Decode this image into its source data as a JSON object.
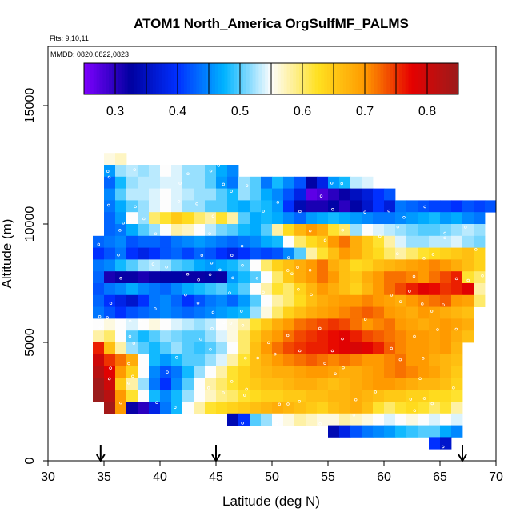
{
  "chart_data": {
    "type": "heatmap",
    "title": "ATOM1 North_America OrgSulfMF_PALMS",
    "annotations": [
      "Flts: 9,10,11",
      "MMDD: 0820,0822,0823"
    ],
    "xlabel": "Latitude (deg N)",
    "ylabel": "Altitude (m)",
    "xlim": [
      30,
      70
    ],
    "ylim": [
      0,
      17500
    ],
    "x_ticks": [
      "30",
      "35",
      "40",
      "45",
      "50",
      "55",
      "60",
      "65",
      "70"
    ],
    "y_ticks": [
      "0",
      "5000",
      "10000",
      "15000"
    ],
    "colorbar": {
      "vmin": 0.25,
      "vmax": 0.85,
      "ticks": [
        "0.3",
        "0.4",
        "0.5",
        "0.6",
        "0.7",
        "0.8"
      ],
      "colors": [
        "#7f00ff",
        "#0000a0",
        "#0030ff",
        "#00b4ff",
        "#fdfdfd",
        "#ffe020",
        "#ff9a00",
        "#e60000",
        "#9a1c1c"
      ]
    },
    "arrows_at_latitude": [
      34.7,
      45,
      67
    ],
    "bin": {
      "lat_step": 1,
      "alt_step": 500
    },
    "rows": [
      {
        "alt": 12750,
        "start": 35,
        "values": [
          0.56,
          0.57
        ]
      },
      {
        "alt": 12250,
        "start": 35,
        "values": [
          0.46,
          0.52,
          0.53,
          0.52,
          0.53,
          0.55,
          0.54,
          0.52,
          0.52,
          0.5,
          0.47,
          0.45
        ]
      },
      {
        "alt": 11750,
        "start": 35,
        "values": [
          0.43,
          0.48,
          0.52,
          0.53,
          0.53,
          0.54,
          0.54,
          0.52,
          0.52,
          0.5,
          0.46,
          0.44,
          0.52,
          0.5,
          0.44,
          0.48,
          0.45,
          0.42,
          0.33,
          0.38,
          0.46,
          0.48,
          0.53,
          0.54
        ]
      },
      {
        "alt": 11250,
        "start": 35,
        "values": [
          0.45,
          0.5,
          0.53,
          0.53,
          0.54,
          0.55,
          0.54,
          0.53,
          0.52,
          0.52,
          0.5,
          0.48,
          0.52,
          0.5,
          0.47,
          0.45,
          0.42,
          0.38,
          0.27,
          0.28,
          0.3,
          0.32,
          0.35,
          0.37,
          0.4,
          0.42
        ]
      },
      {
        "alt": 10750,
        "start": 35,
        "values": [
          0.44,
          0.47,
          0.5,
          0.52,
          0.54,
          0.55,
          0.54,
          0.52,
          0.52,
          0.5,
          0.5,
          0.48,
          0.47,
          0.49,
          0.48,
          0.46,
          0.4,
          0.34,
          0.31,
          0.31,
          0.33,
          0.3,
          0.33,
          0.36,
          0.4,
          0.37,
          0.44,
          0.43,
          0.42,
          0.41,
          0.41,
          0.4,
          0.42,
          0.41,
          0.42
        ]
      },
      {
        "alt": 10250,
        "start": 35,
        "values": [
          0.43,
          0.46,
          0.55,
          0.52,
          0.6,
          0.62,
          0.65,
          0.63,
          0.6,
          0.58,
          0.62,
          0.58,
          0.5,
          0.47,
          0.48,
          0.47,
          0.45,
          0.43,
          0.46,
          0.47,
          0.48,
          0.47,
          0.46,
          0.45,
          0.44,
          0.44,
          0.45,
          0.46,
          0.47,
          0.48,
          0.46,
          0.47,
          0.45,
          0.44
        ]
      },
      {
        "alt": 9750,
        "start": 35,
        "values": [
          0.43,
          0.44,
          0.47,
          0.5,
          0.52,
          0.55,
          0.58,
          0.57,
          0.55,
          0.53,
          0.51,
          0.5,
          0.48,
          0.47,
          0.5,
          0.58,
          0.63,
          0.67,
          0.7,
          0.68,
          0.62,
          0.6,
          0.52,
          0.55,
          0.54,
          0.53,
          0.52,
          0.51,
          0.5,
          0.5,
          0.51,
          0.52,
          0.53,
          0.52
        ]
      },
      {
        "alt": 9250,
        "start": 34,
        "values": [
          0.43,
          0.44,
          0.45,
          0.42,
          0.43,
          0.43,
          0.42,
          0.44,
          0.45,
          0.46,
          0.45,
          0.44,
          0.43,
          0.44,
          0.45,
          0.47,
          0.48,
          0.55,
          0.6,
          0.63,
          0.65,
          0.7,
          0.72,
          0.68,
          0.65,
          0.62,
          0.58,
          0.54,
          0.52,
          0.52,
          0.53,
          0.53,
          0.54,
          0.52,
          0.51
        ]
      },
      {
        "alt": 8750,
        "start": 34,
        "values": [
          0.4,
          0.42,
          0.44,
          0.4,
          0.38,
          0.4,
          0.42,
          0.43,
          0.41,
          0.43,
          0.42,
          0.4,
          0.38,
          0.4,
          0.42,
          0.41,
          0.42,
          0.45,
          0.5,
          0.58,
          0.62,
          0.66,
          0.7,
          0.68,
          0.65,
          0.63,
          0.6,
          0.58,
          0.6,
          0.62,
          0.63,
          0.64,
          0.65,
          0.66,
          0.64
        ]
      },
      {
        "alt": 8250,
        "start": 34,
        "values": [
          0.44,
          0.45,
          0.48,
          0.5,
          0.52,
          0.53,
          0.52,
          0.5,
          0.49,
          0.47,
          0.46,
          0.47,
          0.48,
          0.5,
          0.55,
          0.6,
          0.64,
          0.66,
          0.68,
          0.7,
          0.72,
          0.68,
          0.66,
          0.63,
          0.64,
          0.66,
          0.67,
          0.68,
          0.69,
          0.7,
          0.71,
          0.7,
          0.68,
          0.66,
          0.64
        ]
      },
      {
        "alt": 7750,
        "start": 34,
        "values": [
          0.43,
          0.31,
          0.32,
          0.32,
          0.31,
          0.32,
          0.33,
          0.33,
          0.32,
          0.32,
          0.33,
          0.32,
          0.46,
          0.48,
          0.5,
          0.55,
          0.6,
          0.65,
          0.68,
          0.7,
          0.72,
          0.7,
          0.66,
          0.65,
          0.68,
          0.7,
          0.72,
          0.72,
          0.71,
          0.7,
          0.72,
          0.74,
          0.76,
          0.62,
          0.6
        ]
      },
      {
        "alt": 7250,
        "start": 34,
        "values": [
          0.42,
          0.44,
          0.45,
          0.47,
          0.45,
          0.44,
          0.43,
          0.45,
          0.47,
          0.48,
          0.49,
          0.5,
          0.48,
          0.5,
          0.55,
          0.58,
          0.62,
          0.6,
          0.64,
          0.67,
          0.7,
          0.68,
          0.66,
          0.64,
          0.67,
          0.7,
          0.72,
          0.74,
          0.76,
          0.78,
          0.77,
          0.75,
          0.76,
          0.78,
          0.58
        ]
      },
      {
        "alt": 6750,
        "start": 34,
        "values": [
          0.43,
          0.4,
          0.38,
          0.36,
          0.4,
          0.44,
          0.45,
          0.43,
          0.4,
          0.42,
          0.44,
          0.45,
          0.43,
          0.46,
          0.5,
          0.55,
          0.58,
          0.6,
          0.63,
          0.66,
          0.68,
          0.69,
          0.7,
          0.7,
          0.71,
          0.7,
          0.69,
          0.68,
          0.7,
          0.71,
          0.72,
          0.73,
          0.7,
          0.69,
          0.6
        ]
      },
      {
        "alt": 6250,
        "start": 34,
        "values": [
          0.44,
          0.42,
          0.4,
          0.42,
          0.43,
          0.44,
          0.45,
          0.44,
          0.43,
          0.44,
          0.45,
          0.46,
          0.47,
          0.48,
          0.52,
          0.56,
          0.6,
          0.64,
          0.66,
          0.68,
          0.69,
          0.7,
          0.71,
          0.72,
          0.73,
          0.72,
          0.7,
          0.69,
          0.68,
          0.7,
          0.69,
          0.68,
          0.67,
          0.66
        ]
      },
      {
        "alt": 5750,
        "start": 34,
        "values": [
          0.55,
          0.56,
          0.55,
          0.54,
          0.55,
          0.56,
          0.55,
          0.54,
          0.53,
          0.52,
          0.53,
          0.55,
          0.56,
          0.58,
          0.62,
          0.65,
          0.68,
          0.7,
          0.72,
          0.73,
          0.74,
          0.75,
          0.74,
          0.72,
          0.7,
          0.71,
          0.72,
          0.7,
          0.69,
          0.68,
          0.69,
          0.7,
          0.69,
          0.68
        ]
      },
      {
        "alt": 5250,
        "start": 34,
        "values": [
          0.58,
          0.6,
          0.55,
          0.5,
          0.48,
          0.5,
          0.52,
          0.51,
          0.5,
          0.5,
          0.52,
          0.54,
          0.56,
          0.6,
          0.65,
          0.68,
          0.7,
          0.72,
          0.74,
          0.75,
          0.76,
          0.77,
          0.78,
          0.76,
          0.74,
          0.73,
          0.72,
          0.71,
          0.7,
          0.7,
          0.69,
          0.7,
          0.68,
          0.66
        ]
      },
      {
        "alt": 4750,
        "start": 34,
        "values": [
          0.76,
          0.66,
          0.58,
          0.52,
          0.5,
          0.48,
          0.5,
          0.52,
          0.5,
          0.49,
          0.5,
          0.52,
          0.55,
          0.6,
          0.66,
          0.7,
          0.72,
          0.74,
          0.75,
          0.76,
          0.76,
          0.77,
          0.78,
          0.79,
          0.78,
          0.76,
          0.73,
          0.71,
          0.7,
          0.7,
          0.69,
          0.7,
          0.67
        ]
      },
      {
        "alt": 4250,
        "start": 34,
        "values": [
          0.8,
          0.75,
          0.72,
          0.68,
          0.55,
          0.48,
          0.46,
          0.48,
          0.5,
          0.5,
          0.52,
          0.54,
          0.58,
          0.62,
          0.66,
          0.68,
          0.7,
          0.71,
          0.72,
          0.73,
          0.72,
          0.71,
          0.72,
          0.71,
          0.7,
          0.7,
          0.71,
          0.72,
          0.7,
          0.7,
          0.68,
          0.67,
          0.66
        ]
      },
      {
        "alt": 3750,
        "start": 34,
        "values": [
          0.82,
          0.78,
          0.7,
          0.64,
          0.55,
          0.45,
          0.42,
          0.44,
          0.48,
          0.52,
          0.55,
          0.58,
          0.62,
          0.64,
          0.66,
          0.67,
          0.68,
          0.68,
          0.69,
          0.7,
          0.7,
          0.69,
          0.68,
          0.68,
          0.69,
          0.7,
          0.71,
          0.72,
          0.71,
          0.7,
          0.69,
          0.67,
          0.65
        ]
      },
      {
        "alt": 3250,
        "start": 34,
        "values": [
          0.84,
          0.8,
          0.65,
          0.58,
          0.52,
          0.44,
          0.4,
          0.45,
          0.5,
          0.55,
          0.58,
          0.6,
          0.62,
          0.64,
          0.65,
          0.66,
          0.66,
          0.67,
          0.68,
          0.68,
          0.67,
          0.66,
          0.67,
          0.68,
          0.69,
          0.7,
          0.7,
          0.69,
          0.68,
          0.67,
          0.67,
          0.66,
          0.64
        ]
      },
      {
        "alt": 2750,
        "start": 34,
        "values": [
          0.85,
          0.82,
          0.7,
          0.62,
          0.55,
          0.48,
          0.45,
          0.48,
          0.52,
          0.55,
          0.57,
          0.59,
          0.6,
          0.62,
          0.63,
          0.64,
          0.64,
          0.65,
          0.65,
          0.66,
          0.66,
          0.67,
          0.67,
          0.68,
          0.67,
          0.66,
          0.65,
          0.65,
          0.64,
          0.64,
          0.63,
          0.63,
          0.62
        ]
      },
      {
        "alt": 2250,
        "start": 35,
        "values": [
          0.84,
          0.7,
          0.32,
          0.3,
          0.38,
          0.44,
          0.48,
          0.55,
          0.58,
          0.62,
          0.63,
          0.64,
          0.65,
          0.66,
          0.67,
          0.68,
          0.67,
          0.66,
          0.65,
          0.64,
          0.66,
          0.67,
          0.68,
          0.66,
          0.62,
          0.6,
          0.62,
          0.63,
          0.62,
          0.6,
          0.62,
          0.58
        ]
      },
      {
        "alt": 1750,
        "start": 46,
        "values": [
          0.34,
          0.4,
          0.5,
          0.52,
          0.55,
          0.56,
          0.58,
          0.57,
          0.56,
          0.56,
          0.58,
          0.57,
          0.56,
          0.55,
          0.54,
          0.55,
          0.56,
          0.55,
          0.54,
          0.55,
          0.54
        ]
      },
      {
        "alt": 1250,
        "start": 55,
        "values": [
          0.34,
          0.38,
          0.42,
          0.44,
          0.45,
          0.46,
          0.48,
          0.49,
          0.5,
          0.5,
          0.47,
          0.45
        ]
      },
      {
        "alt": 750,
        "start": 64,
        "values": [
          0.4,
          0.36
        ]
      }
    ]
  }
}
